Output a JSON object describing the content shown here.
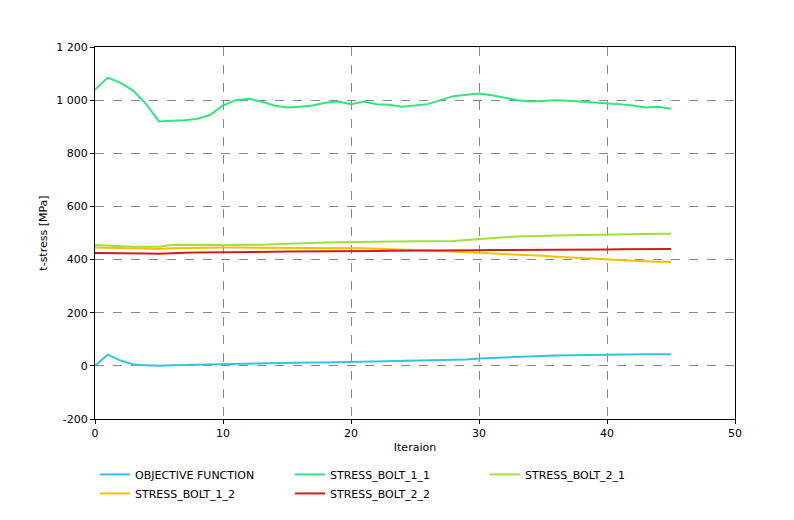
{
  "chart_data": {
    "type": "line",
    "x_label": "Iteraion",
    "y_label": "t-stress [MPa]",
    "x": [
      0,
      1,
      2,
      3,
      4,
      5,
      6,
      7,
      8,
      9,
      10,
      11,
      12,
      13,
      14,
      15,
      16,
      17,
      18,
      19,
      20,
      21,
      22,
      23,
      24,
      25,
      26,
      27,
      28,
      29,
      30,
      31,
      32,
      33,
      34,
      35,
      36,
      37,
      38,
      39,
      40,
      41,
      42,
      43,
      44,
      45
    ],
    "series": [
      {
        "name": "OBJECTIVE FUNCTION",
        "color": "#2fc4e8",
        "values": [
          0,
          42,
          20,
          5,
          2,
          0,
          2,
          3,
          4,
          5,
          8,
          8,
          8,
          9,
          10,
          11,
          12,
          13,
          13,
          14,
          15,
          16,
          17,
          18,
          19,
          19,
          20,
          20,
          21,
          24,
          28,
          30,
          32,
          35,
          37,
          38,
          39,
          40,
          41,
          42,
          42,
          43,
          43,
          44,
          44,
          44
        ]
      },
      {
        "name": "STRESS_BOLT_1_1",
        "color": "#2ee87a",
        "values": [
          1040,
          1085,
          1065,
          1035,
          985,
          920,
          922,
          924,
          930,
          945,
          980,
          1000,
          1005,
          995,
          980,
          972,
          975,
          980,
          990,
          995,
          985,
          995,
          985,
          983,
          975,
          980,
          985,
          1000,
          1015,
          1020,
          1025,
          1018,
          1010,
          1000,
          995,
          998,
          1000,
          998,
          995,
          992,
          990,
          985,
          980,
          972,
          975,
          968
        ]
      },
      {
        "name": "STRESS_BOLT_2_1",
        "color": "#9fe03a",
        "values": [
          455,
          452,
          450,
          448,
          448,
          448,
          455,
          456,
          456,
          456,
          455,
          455,
          455,
          456,
          458,
          460,
          462,
          463,
          464,
          465,
          466,
          467,
          467,
          468,
          468,
          469,
          469,
          469,
          470,
          474,
          478,
          481,
          484,
          487,
          489,
          490,
          491,
          492,
          493,
          494,
          495,
          495,
          496,
          496,
          497,
          497
        ]
      },
      {
        "name": "STRESS_BOLT_1_2",
        "color": "#f5c000",
        "values": [
          445,
          444,
          442,
          442,
          441,
          440,
          443,
          444,
          445,
          445,
          445,
          445,
          445,
          445,
          445,
          445,
          445,
          445,
          445,
          445,
          445,
          443,
          441,
          440,
          438,
          436,
          434,
          432,
          430,
          428,
          426,
          424,
          422,
          420,
          417,
          414,
          411,
          408,
          405,
          402,
          400,
          398,
          396,
          394,
          392,
          390
        ]
      },
      {
        "name": "STRESS_BOLT_2_2",
        "color": "#d01c1c",
        "values": [
          425,
          425,
          424,
          424,
          423,
          422,
          425,
          426,
          427,
          427,
          428,
          428,
          428,
          429,
          429,
          430,
          430,
          431,
          431,
          432,
          432,
          432,
          432,
          433,
          433,
          433,
          434,
          434,
          434,
          435,
          435,
          436,
          436,
          436,
          437,
          437,
          437,
          438,
          438,
          438,
          438,
          439,
          439,
          439,
          440,
          440
        ]
      }
    ],
    "xlim": [
      0,
      50
    ],
    "xticks": [
      0,
      10,
      20,
      30,
      40,
      50
    ],
    "ylim": [
      -200,
      1200
    ],
    "yticks": [
      -200,
      0,
      200,
      400,
      600,
      800,
      {
        "value": 1000,
        "label": "1 000"
      },
      {
        "value": 1200,
        "label": "1 200"
      }
    ],
    "grid": true,
    "legend": "bottom"
  }
}
